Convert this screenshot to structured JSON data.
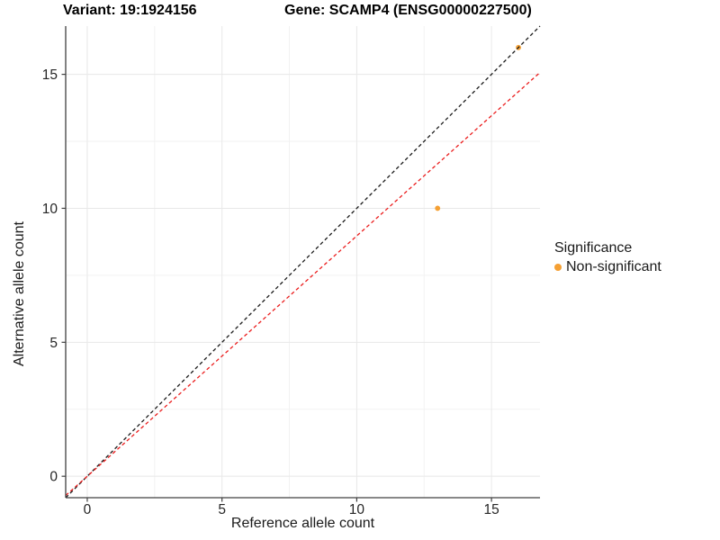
{
  "title": {
    "variant": "Variant: 19:1924156",
    "gene": "Gene: SCAMP4 (ENSG00000227500)"
  },
  "axes": {
    "x_label": "Reference allele count",
    "y_label": "Alternative allele count"
  },
  "legend": {
    "title": "Significance",
    "items": [
      {
        "label": "Non-significant",
        "color": "#F5A033"
      }
    ]
  },
  "chart_data": {
    "type": "scatter",
    "title": "Variant: 19:1924156   Gene: SCAMP4 (ENSG00000227500)",
    "xlabel": "Reference allele count",
    "ylabel": "Alternative allele count",
    "xlim": [
      -0.8,
      16.8
    ],
    "ylim": [
      -0.8,
      16.8
    ],
    "x_ticks": [
      0,
      5,
      10,
      15
    ],
    "y_ticks": [
      0,
      5,
      10,
      15
    ],
    "minor_gridlines": [
      2.5,
      7.5,
      12.5
    ],
    "grid": "on",
    "legend_position": "right",
    "series": [
      {
        "name": "Non-significant",
        "color": "#F5A033",
        "points": [
          {
            "x": 13,
            "y": 10
          },
          {
            "x": 16,
            "y": 16
          }
        ]
      }
    ],
    "reference_lines": [
      {
        "name": "identity",
        "slope": 1,
        "intercept": 0,
        "color": "#1a1a1a",
        "style": "dashed"
      },
      {
        "name": "observed-ratio",
        "slope": 0.897,
        "intercept": 0,
        "color": "#EB1D1D",
        "style": "dashed"
      }
    ],
    "style": {
      "major_grid_color": "#E8E8E8",
      "minor_grid_color": "#F2F2F2",
      "axis_line_color": "#404040",
      "tick_label_color": "#262626",
      "point_radius": 2.9
    }
  }
}
